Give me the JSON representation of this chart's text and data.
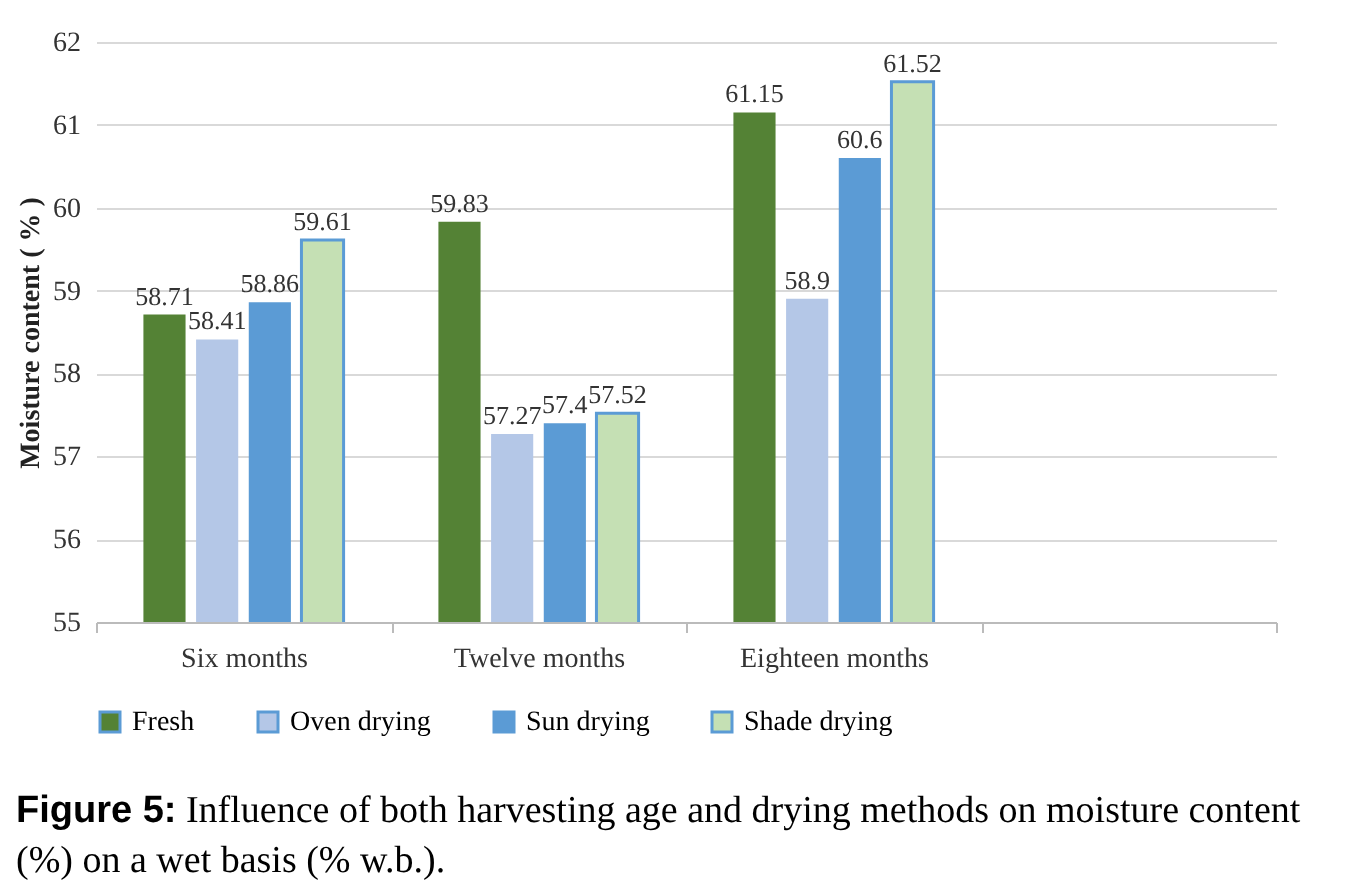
{
  "chart_data": {
    "type": "bar",
    "categories": [
      "Six months",
      "Twelve months",
      "Eighteen months",
      null
    ],
    "series": [
      {
        "name": "Fresh",
        "color": "#548235",
        "values": [
          58.71,
          59.83,
          61.15,
          null
        ]
      },
      {
        "name": "Oven drying",
        "color": "#b4c7e7",
        "values": [
          58.41,
          57.27,
          58.9,
          null
        ]
      },
      {
        "name": "Sun drying",
        "color": "#5b9bd5",
        "values": [
          58.86,
          57.4,
          60.6,
          null
        ]
      },
      {
        "name": "Shade drying",
        "color": "#c5e0b4",
        "values": [
          59.61,
          57.52,
          61.52,
          null
        ]
      }
    ],
    "ylabel": "Moisture content ( % )",
    "ylim": [
      55,
      62
    ],
    "yticks": [
      55,
      56,
      57,
      58,
      59,
      60,
      61,
      62
    ],
    "grid": "y",
    "legend": "bottom",
    "data_labels": true,
    "annotations": [
      "Figure 5:",
      "Influence of both harvesting age and drying methods on moisture content (%) on a wet basis (% w.b.)."
    ]
  }
}
